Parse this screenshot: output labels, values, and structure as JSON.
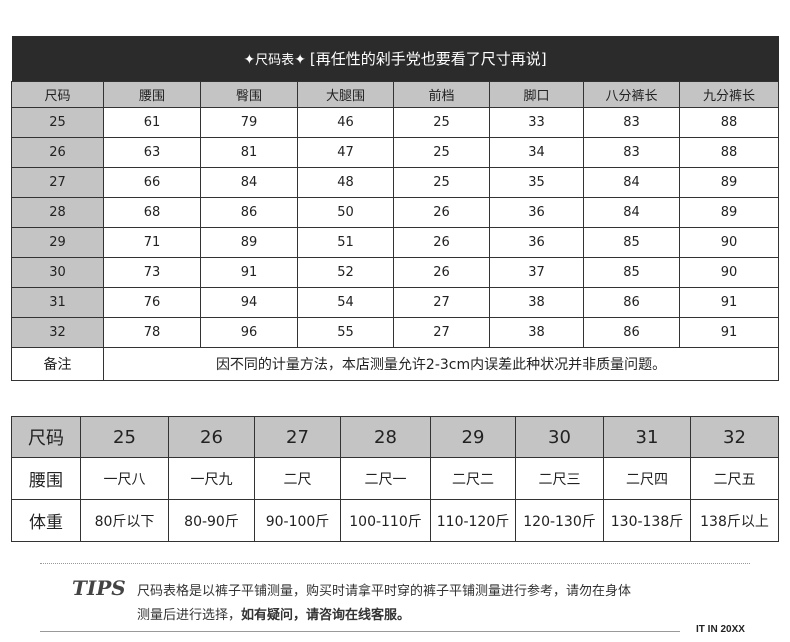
{
  "title": {
    "main": "尺码表",
    "sub": "[再任性的剁手党也要看了尺寸再说]"
  },
  "table1": {
    "headers": [
      "尺码",
      "腰围",
      "臀围",
      "大腿围",
      "前档",
      "脚口",
      "八分裤长",
      "九分裤长"
    ],
    "rows": [
      [
        "25",
        "61",
        "79",
        "46",
        "25",
        "33",
        "83",
        "88"
      ],
      [
        "26",
        "63",
        "81",
        "47",
        "25",
        "34",
        "83",
        "88"
      ],
      [
        "27",
        "66",
        "84",
        "48",
        "25",
        "35",
        "84",
        "89"
      ],
      [
        "28",
        "68",
        "86",
        "50",
        "26",
        "36",
        "84",
        "89"
      ],
      [
        "29",
        "71",
        "89",
        "51",
        "26",
        "36",
        "85",
        "90"
      ],
      [
        "30",
        "73",
        "91",
        "52",
        "26",
        "37",
        "85",
        "90"
      ],
      [
        "31",
        "76",
        "94",
        "54",
        "27",
        "38",
        "86",
        "91"
      ],
      [
        "32",
        "78",
        "96",
        "55",
        "27",
        "38",
        "86",
        "91"
      ]
    ],
    "note_label": "备注",
    "note_text": "因不同的计量方法，本店测量允许2-3cm内误差此种状况并非质量问题。"
  },
  "table2": {
    "rows": [
      {
        "label": "尺码",
        "values": [
          "25",
          "26",
          "27",
          "28",
          "29",
          "30",
          "31",
          "32"
        ]
      },
      {
        "label": "腰围",
        "values": [
          "一尺八",
          "一尺九",
          "二尺",
          "二尺一",
          "二尺二",
          "二尺三",
          "二尺四",
          "二尺五"
        ]
      },
      {
        "label": "体重",
        "values": [
          "80斤以下",
          "80-90斤",
          "90-100斤",
          "100-110斤",
          "110-120斤",
          "120-130斤",
          "130-138斤",
          "138斤以上"
        ]
      }
    ]
  },
  "tips": {
    "label": "TIPS",
    "line1": "尺码表格是以裤子平铺测量，购买时请拿平时穿的裤子平铺测量进行参考，请勿在身体",
    "line2_plain": "测量后进行选择，",
    "line2_bold": "如有疑问，请咨询在线客服。"
  },
  "brand": "IT IN 20XX"
}
